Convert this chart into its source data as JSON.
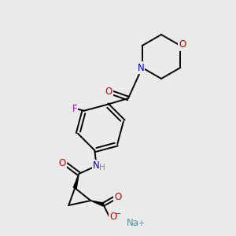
{
  "bg_color": "#ebebeb",
  "bond_color": "#000000",
  "atom_colors": {
    "O": "#cc0000",
    "N": "#0000cc",
    "F": "#cc00cc",
    "Na": "#4a8fa8",
    "H": "#888888"
  },
  "figsize": [
    3.0,
    3.0
  ],
  "dpi": 100
}
